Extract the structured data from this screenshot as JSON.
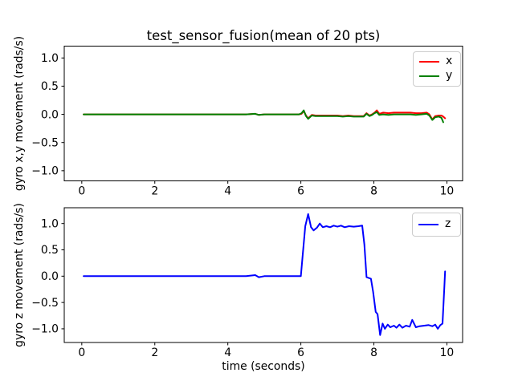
{
  "figure": {
    "title": "test_sensor_fusion(mean of 20 pts)",
    "background_color": "#ffffff",
    "text_color": "#000000"
  },
  "chart_data": [
    {
      "type": "line",
      "title": "test_sensor_fusion(mean of 20 pts)",
      "xlabel": "",
      "ylabel": "gyro x,y movement (rads/s)",
      "xlim": [
        -0.48,
        10.43
      ],
      "ylim": [
        -1.18,
        1.21
      ],
      "grid": false,
      "xticks": {
        "values": [
          0,
          2,
          4,
          6,
          8,
          10
        ],
        "labels": [
          "0",
          "2",
          "4",
          "6",
          "8",
          "10"
        ]
      },
      "yticks": {
        "values": [
          1.0,
          0.5,
          0.0,
          -0.5,
          -1.0
        ],
        "labels": [
          "1.0",
          "0.5",
          "0.0",
          "−0.5",
          "−1.0"
        ]
      },
      "legend": {
        "position": "upper right",
        "entries": [
          {
            "label": "x",
            "color": "#ff0000"
          },
          {
            "label": "y",
            "color": "#008000"
          }
        ]
      },
      "series": [
        {
          "name": "x",
          "color": "#ff0000",
          "points": [
            [
              0.05,
              0
            ],
            [
              0.5,
              0
            ],
            [
              1.0,
              0
            ],
            [
              1.5,
              0
            ],
            [
              2.0,
              0
            ],
            [
              2.5,
              0
            ],
            [
              3.0,
              0
            ],
            [
              3.5,
              0
            ],
            [
              4.0,
              0
            ],
            [
              4.5,
              0
            ],
            [
              4.75,
              0.01
            ],
            [
              4.85,
              -0.01
            ],
            [
              5.0,
              0
            ],
            [
              5.5,
              0
            ],
            [
              5.95,
              0
            ],
            [
              6.02,
              0.01
            ],
            [
              6.08,
              0.06
            ],
            [
              6.14,
              -0.02
            ],
            [
              6.2,
              -0.07
            ],
            [
              6.3,
              -0.01
            ],
            [
              6.4,
              -0.02
            ],
            [
              6.55,
              -0.02
            ],
            [
              6.7,
              -0.02
            ],
            [
              6.85,
              -0.02
            ],
            [
              7.0,
              -0.02
            ],
            [
              7.15,
              -0.03
            ],
            [
              7.3,
              -0.02
            ],
            [
              7.45,
              -0.03
            ],
            [
              7.6,
              -0.03
            ],
            [
              7.72,
              -0.03
            ],
            [
              7.8,
              0.02
            ],
            [
              7.88,
              -0.02
            ],
            [
              7.95,
              0.0
            ],
            [
              8.02,
              0.03
            ],
            [
              8.08,
              0.07
            ],
            [
              8.15,
              0.01
            ],
            [
              8.25,
              0.03
            ],
            [
              8.4,
              0.02
            ],
            [
              8.55,
              0.03
            ],
            [
              8.7,
              0.03
            ],
            [
              8.85,
              0.03
            ],
            [
              9.0,
              0.03
            ],
            [
              9.15,
              0.02
            ],
            [
              9.3,
              0.02
            ],
            [
              9.45,
              0.03
            ],
            [
              9.52,
              0.0
            ],
            [
              9.6,
              -0.09
            ],
            [
              9.68,
              -0.03
            ],
            [
              9.78,
              -0.02
            ],
            [
              9.85,
              -0.02
            ],
            [
              9.9,
              -0.04
            ],
            [
              9.95,
              -0.07
            ]
          ]
        },
        {
          "name": "y",
          "color": "#008000",
          "points": [
            [
              0.05,
              0
            ],
            [
              0.5,
              0
            ],
            [
              1.0,
              0
            ],
            [
              1.5,
              0
            ],
            [
              2.0,
              0
            ],
            [
              2.5,
              0
            ],
            [
              3.0,
              0
            ],
            [
              3.5,
              0
            ],
            [
              4.0,
              0
            ],
            [
              4.5,
              0
            ],
            [
              4.75,
              0.01
            ],
            [
              4.85,
              -0.01
            ],
            [
              5.0,
              0
            ],
            [
              5.5,
              0
            ],
            [
              5.95,
              0
            ],
            [
              6.02,
              0.02
            ],
            [
              6.08,
              0.07
            ],
            [
              6.14,
              -0.03
            ],
            [
              6.2,
              -0.08
            ],
            [
              6.3,
              -0.02
            ],
            [
              6.4,
              -0.03
            ],
            [
              6.55,
              -0.03
            ],
            [
              6.7,
              -0.03
            ],
            [
              6.85,
              -0.03
            ],
            [
              7.0,
              -0.03
            ],
            [
              7.15,
              -0.04
            ],
            [
              7.3,
              -0.03
            ],
            [
              7.45,
              -0.04
            ],
            [
              7.6,
              -0.04
            ],
            [
              7.72,
              -0.04
            ],
            [
              7.8,
              0.01
            ],
            [
              7.88,
              -0.03
            ],
            [
              7.95,
              -0.01
            ],
            [
              8.02,
              0.02
            ],
            [
              8.08,
              0.04
            ],
            [
              8.15,
              -0.01
            ],
            [
              8.25,
              0.0
            ],
            [
              8.4,
              -0.01
            ],
            [
              8.55,
              0.0
            ],
            [
              8.7,
              0.0
            ],
            [
              8.85,
              0.0
            ],
            [
              9.0,
              0.0
            ],
            [
              9.15,
              -0.01
            ],
            [
              9.3,
              0.0
            ],
            [
              9.45,
              0.01
            ],
            [
              9.52,
              -0.02
            ],
            [
              9.6,
              -0.1
            ],
            [
              9.68,
              -0.05
            ],
            [
              9.78,
              -0.04
            ],
            [
              9.85,
              -0.06
            ],
            [
              9.9,
              -0.14
            ]
          ]
        }
      ]
    },
    {
      "type": "line",
      "title": "",
      "xlabel": "time (seconds)",
      "ylabel": "gyro z movement (rads/s)",
      "xlim": [
        -0.48,
        10.43
      ],
      "ylim": [
        -1.26,
        1.3
      ],
      "grid": false,
      "xticks": {
        "values": [
          0,
          2,
          4,
          6,
          8,
          10
        ],
        "labels": [
          "0",
          "2",
          "4",
          "6",
          "8",
          "10"
        ]
      },
      "yticks": {
        "values": [
          1.0,
          0.5,
          0.0,
          -0.5,
          -1.0
        ],
        "labels": [
          "1.0",
          "0.5",
          "0.0",
          "−0.5",
          "−1.0"
        ]
      },
      "legend": {
        "position": "upper right",
        "entries": [
          {
            "label": "z",
            "color": "#0000ff"
          }
        ]
      },
      "series": [
        {
          "name": "z",
          "color": "#0000ff",
          "points": [
            [
              0.05,
              0
            ],
            [
              0.5,
              0
            ],
            [
              1.0,
              0
            ],
            [
              1.5,
              0
            ],
            [
              2.0,
              0
            ],
            [
              2.5,
              0
            ],
            [
              3.0,
              0
            ],
            [
              3.5,
              0
            ],
            [
              4.0,
              0
            ],
            [
              4.5,
              0
            ],
            [
              4.75,
              0.02
            ],
            [
              4.85,
              -0.02
            ],
            [
              5.0,
              0
            ],
            [
              5.5,
              0
            ],
            [
              6.0,
              0
            ],
            [
              6.05,
              0.4
            ],
            [
              6.12,
              0.95
            ],
            [
              6.2,
              1.18
            ],
            [
              6.28,
              0.93
            ],
            [
              6.35,
              0.87
            ],
            [
              6.44,
              0.92
            ],
            [
              6.52,
              1.0
            ],
            [
              6.6,
              0.93
            ],
            [
              6.7,
              0.95
            ],
            [
              6.8,
              0.93
            ],
            [
              6.9,
              0.96
            ],
            [
              7.0,
              0.94
            ],
            [
              7.1,
              0.96
            ],
            [
              7.2,
              0.93
            ],
            [
              7.32,
              0.95
            ],
            [
              7.45,
              0.94
            ],
            [
              7.58,
              0.95
            ],
            [
              7.68,
              0.96
            ],
            [
              7.74,
              0.6
            ],
            [
              7.8,
              -0.02
            ],
            [
              7.92,
              -0.05
            ],
            [
              7.98,
              -0.3
            ],
            [
              8.05,
              -0.68
            ],
            [
              8.1,
              -0.72
            ],
            [
              8.17,
              -1.12
            ],
            [
              8.24,
              -0.9
            ],
            [
              8.3,
              -1.0
            ],
            [
              8.38,
              -0.92
            ],
            [
              8.45,
              -0.97
            ],
            [
              8.55,
              -0.94
            ],
            [
              8.62,
              -0.98
            ],
            [
              8.7,
              -0.92
            ],
            [
              8.78,
              -0.98
            ],
            [
              8.88,
              -0.94
            ],
            [
              8.98,
              -0.96
            ],
            [
              9.05,
              -0.83
            ],
            [
              9.15,
              -0.97
            ],
            [
              9.25,
              -0.95
            ],
            [
              9.38,
              -0.94
            ],
            [
              9.5,
              -0.93
            ],
            [
              9.6,
              -0.95
            ],
            [
              9.68,
              -0.92
            ],
            [
              9.75,
              -1.0
            ],
            [
              9.82,
              -0.93
            ],
            [
              9.88,
              -0.9
            ],
            [
              9.93,
              -0.2
            ],
            [
              9.95,
              0.09
            ]
          ]
        }
      ]
    }
  ]
}
